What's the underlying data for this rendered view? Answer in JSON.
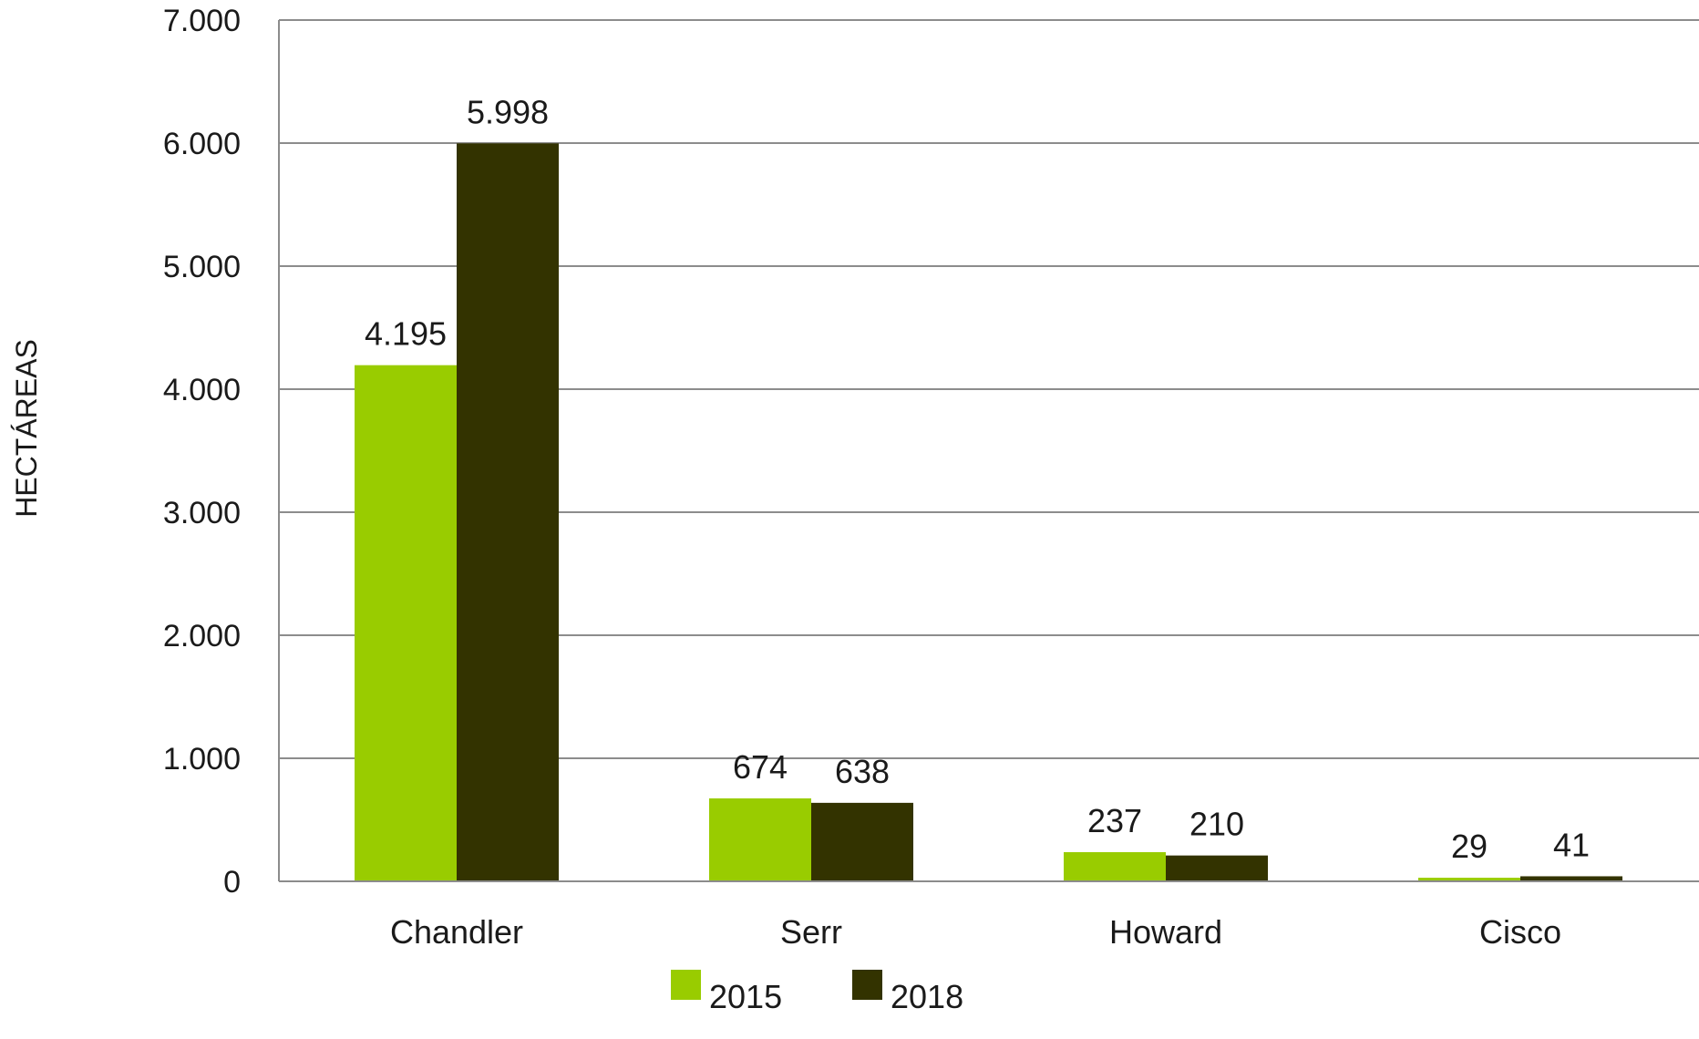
{
  "chart_data": {
    "type": "bar",
    "title": "",
    "xlabel": "",
    "ylabel": "HECTÁREAS",
    "categories": [
      "Chandler",
      "Serr",
      "Howard",
      "Cisco"
    ],
    "series": [
      {
        "name": "2015",
        "color": "#99cc00",
        "values": [
          4195,
          674,
          237,
          29
        ],
        "labels": [
          "4.195",
          "674",
          "237",
          "29"
        ]
      },
      {
        "name": "2018",
        "color": "#333300",
        "values": [
          5998,
          638,
          210,
          41
        ],
        "labels": [
          "5.998",
          "638",
          "210",
          "41"
        ]
      }
    ],
    "ylim": [
      0,
      7000
    ],
    "yticks": [
      {
        "value": 0,
        "label": "0"
      },
      {
        "value": 1000,
        "label": "1.000"
      },
      {
        "value": 2000,
        "label": "2.000"
      },
      {
        "value": 3000,
        "label": "3.000"
      },
      {
        "value": 4000,
        "label": "4.000"
      },
      {
        "value": 5000,
        "label": "5.000"
      },
      {
        "value": 6000,
        "label": "6.000"
      },
      {
        "value": 7000,
        "label": "7.000"
      }
    ],
    "grid": true,
    "legend_position": "bottom",
    "gridline_color": "#8c8c8c"
  }
}
